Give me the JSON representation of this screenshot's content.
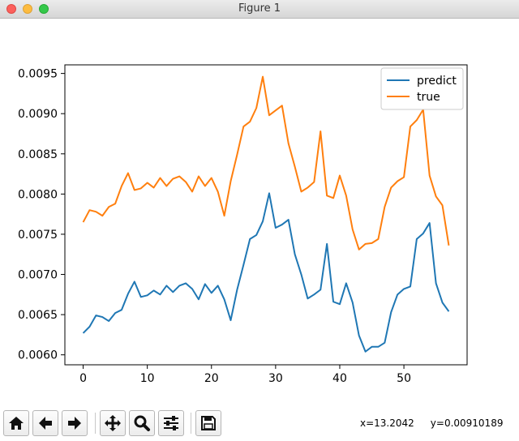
{
  "window": {
    "title": "Figure 1"
  },
  "toolbar": {
    "buttons": [
      {
        "name": "home-button",
        "icon": "home-icon"
      },
      {
        "name": "back-button",
        "icon": "arrow-left-icon"
      },
      {
        "name": "forward-button",
        "icon": "arrow-right-icon"
      },
      {
        "name": "pan-button",
        "icon": "move-icon"
      },
      {
        "name": "zoom-button",
        "icon": "magnifier-icon"
      },
      {
        "name": "configure-subplots-button",
        "icon": "sliders-icon"
      },
      {
        "name": "save-button",
        "icon": "floppy-disk-icon"
      }
    ]
  },
  "status": {
    "x": "x=13.2042",
    "y": "y=0.00910189"
  },
  "chart_data": {
    "type": "line",
    "x": [
      0,
      1,
      2,
      3,
      4,
      5,
      6,
      7,
      8,
      9,
      10,
      11,
      12,
      13,
      14,
      15,
      16,
      17,
      18,
      19,
      20,
      21,
      22,
      23,
      24,
      25,
      26,
      27,
      28,
      29,
      30,
      31,
      32,
      33,
      34,
      35,
      36,
      37,
      38,
      39,
      40,
      41,
      42,
      43,
      44,
      45,
      46,
      47,
      48,
      49,
      50,
      51,
      52,
      53,
      54,
      55,
      56,
      57
    ],
    "series": [
      {
        "name": "predict",
        "color": "#1f77b4",
        "values": [
          0.00627,
          0.00635,
          0.00649,
          0.00647,
          0.00642,
          0.00652,
          0.00656,
          0.00676,
          0.00691,
          0.00672,
          0.00674,
          0.0068,
          0.00675,
          0.00686,
          0.00678,
          0.00686,
          0.00689,
          0.00682,
          0.00669,
          0.00688,
          0.00677,
          0.00686,
          0.00669,
          0.00643,
          0.00681,
          0.00712,
          0.00744,
          0.00749,
          0.00766,
          0.00801,
          0.00758,
          0.00762,
          0.00768,
          0.00725,
          0.007,
          0.0067,
          0.00675,
          0.00681,
          0.00738,
          0.00666,
          0.00663,
          0.00689,
          0.00665,
          0.00624,
          0.00604,
          0.0061,
          0.0061,
          0.00615,
          0.00653,
          0.00675,
          0.00682,
          0.00685,
          0.00744,
          0.00751,
          0.00764,
          0.00689,
          0.00665,
          0.00654
        ]
      },
      {
        "name": "true",
        "color": "#ff7f0e",
        "values": [
          0.00765,
          0.0078,
          0.00778,
          0.00773,
          0.00784,
          0.00788,
          0.0081,
          0.00826,
          0.00805,
          0.00807,
          0.00814,
          0.00808,
          0.0082,
          0.0081,
          0.00819,
          0.00822,
          0.00815,
          0.00803,
          0.00822,
          0.0081,
          0.0082,
          0.00803,
          0.00773,
          0.00816,
          0.00849,
          0.00884,
          0.0089,
          0.00907,
          0.00946,
          0.00898,
          0.00904,
          0.0091,
          0.00863,
          0.00834,
          0.00803,
          0.00808,
          0.00815,
          0.00878,
          0.00798,
          0.00795,
          0.00823,
          0.00798,
          0.00756,
          0.00731,
          0.00738,
          0.00739,
          0.00744,
          0.00784,
          0.00808,
          0.00816,
          0.00821,
          0.00884,
          0.00892,
          0.00905,
          0.00823,
          0.00797,
          0.00786,
          0.00736
        ]
      }
    ],
    "xticks": [
      0,
      10,
      20,
      30,
      40,
      50
    ],
    "xtick_labels": [
      "0",
      "10",
      "20",
      "30",
      "40",
      "50"
    ],
    "yticks": [
      0.006,
      0.0065,
      0.007,
      0.0075,
      0.008,
      0.0085,
      0.009,
      0.0095
    ],
    "ytick_labels": [
      "0.0060",
      "0.0065",
      "0.0070",
      "0.0075",
      "0.0080",
      "0.0085",
      "0.0090",
      "0.0095"
    ],
    "xlim": [
      -2.85,
      59.85
    ],
    "ylim": [
      0.005876,
      0.009607
    ],
    "legend": "top-right",
    "grid": false,
    "title": "",
    "xlabel": "",
    "ylabel": ""
  }
}
